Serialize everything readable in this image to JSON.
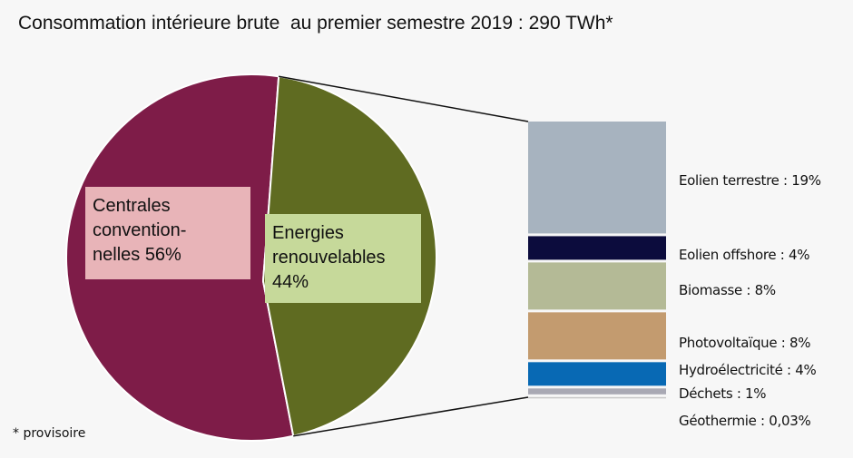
{
  "title": "Consommation intérieure brute  au premier semestre 2019 : 290 TWh*",
  "footnote": "* provisoire",
  "chart_data": {
    "type": "pie",
    "title": "Consommation intérieure brute  au premier semestre 2019 : 290 TWh*",
    "slices": [
      {
        "label_lines": [
          "Centrales",
          "convention-",
          "nelles  56%"
        ],
        "value": 56,
        "color": "#7e1c48",
        "label_bg": "#e8b4b8"
      },
      {
        "label_lines": [
          "Energies",
          "renouvelables",
          "44%"
        ],
        "value": 44,
        "color": "#5f6b21",
        "label_bg": "#c6d99a"
      }
    ],
    "breakdown": {
      "type": "stacked-bar",
      "of_slice": "Energies renouvelables",
      "segments": [
        {
          "label": "Eolien terrestre : 19%",
          "value": 19,
          "color": "#a7b3bf"
        },
        {
          "label": "Eolien offshore : 4%",
          "value": 4,
          "color": "#0c0c3d"
        },
        {
          "label": "Biomasse  : 8%",
          "value": 8,
          "color": "#b4ba96"
        },
        {
          "label": "Photovoltaïque  : 8%",
          "value": 8,
          "color": "#c39b6f"
        },
        {
          "label": "Hydroélectricité : 4%",
          "value": 4,
          "color": "#0869b4"
        },
        {
          "label": "Déchets  : 1%",
          "value": 1,
          "color": "#a9a9b4"
        },
        {
          "label": "Géothermie : 0,03%",
          "value": 0.03,
          "color": "#c8c8c8"
        }
      ]
    }
  }
}
